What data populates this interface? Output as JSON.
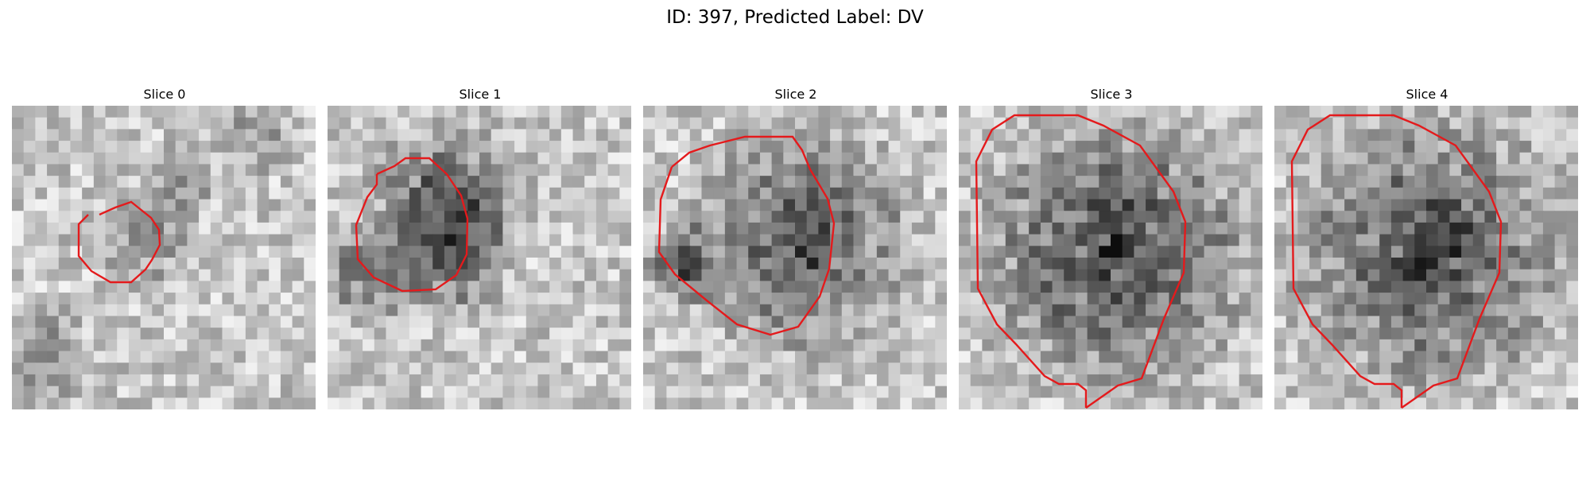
{
  "figure": {
    "title": "ID: 397, Predicted Label: DV"
  },
  "panels": [
    {
      "title": "Slice 0",
      "seed": 11,
      "blob_strength": 0.45,
      "background": "light-mottled"
    },
    {
      "title": "Slice 1",
      "seed": 23,
      "blob_strength": 0.75,
      "background": "light-mottled"
    },
    {
      "title": "Slice 2",
      "seed": 37,
      "blob_strength": 0.85,
      "background": "light"
    },
    {
      "title": "Slice 3",
      "seed": 41,
      "blob_strength": 0.95,
      "background": "light"
    },
    {
      "title": "Slice 4",
      "seed": 53,
      "blob_strength": 0.95,
      "background": "light"
    }
  ],
  "colors": {
    "contour": "#e41a1c",
    "background": "#ffffff"
  }
}
